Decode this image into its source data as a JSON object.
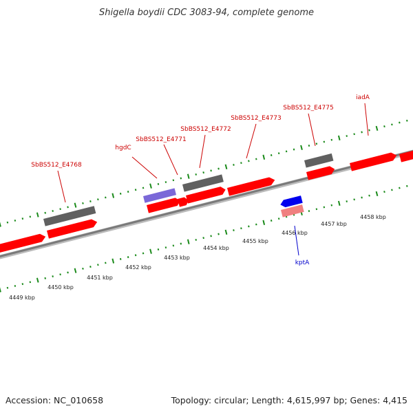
{
  "title": "Shigella boydii CDC 3083-94, complete genome",
  "footer": {
    "accession": "Accession: NC_010658",
    "summary": "Topology: circular; Length: 4,615,997 bp; Genes: 4,415"
  },
  "colors": {
    "gene": "#ff0000",
    "gene_light": "#f08080",
    "gene_dark": "#606060",
    "blue": "#0000ee",
    "purple": "#7b68d8",
    "tick": "#1a8a1a",
    "backbone": "#888888",
    "label_red": "#cc0000",
    "label_blue": "#0000cc"
  },
  "scale": {
    "unit": "kbp",
    "ticks": [
      {
        "label": "4449 kbp"
      },
      {
        "label": "4450 kbp"
      },
      {
        "label": "4451 kbp"
      },
      {
        "label": "4452 kbp"
      },
      {
        "label": "4453 kbp"
      },
      {
        "label": "4454 kbp"
      },
      {
        "label": "4455 kbp"
      },
      {
        "label": "4456 kbp"
      },
      {
        "label": "4457 kbp"
      },
      {
        "label": "4458 kbp"
      }
    ]
  },
  "gene_labels": [
    {
      "text": "SbBS512_E4768",
      "color": "#cc0000"
    },
    {
      "text": "hgdC",
      "color": "#cc0000"
    },
    {
      "text": "SbBS512_E4771",
      "color": "#cc0000"
    },
    {
      "text": "SbBS512_E4772",
      "color": "#cc0000"
    },
    {
      "text": "SbBS512_E4773",
      "color": "#cc0000"
    },
    {
      "text": "SbBS512_E4775",
      "color": "#cc0000"
    },
    {
      "text": "iadA",
      "color": "#cc0000"
    },
    {
      "text": "kptA",
      "color": "#0000cc"
    }
  ]
}
